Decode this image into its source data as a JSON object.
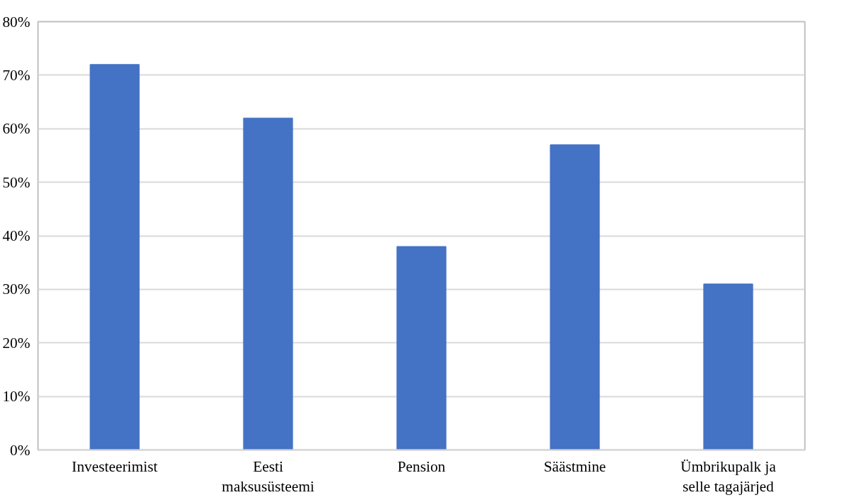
{
  "chart_data": {
    "type": "bar",
    "categories": [
      "Investeerimist",
      "Eesti maksusüsteemi",
      "Pension",
      "Säästmine",
      "Ümbrikupalk ja selle tagajärjed"
    ],
    "values": [
      72,
      62,
      38,
      57,
      31
    ],
    "color": "#4472c4",
    "ylim": [
      0,
      80
    ],
    "yticks": [
      {
        "value": 0,
        "label": "0%"
      },
      {
        "value": 10,
        "label": "10%"
      },
      {
        "value": 20,
        "label": "20%"
      },
      {
        "value": 30,
        "label": "30%"
      },
      {
        "value": 40,
        "label": "40%"
      },
      {
        "value": 50,
        "label": "50%"
      },
      {
        "value": 60,
        "label": "60%"
      },
      {
        "value": 70,
        "label": "70%"
      },
      {
        "value": 80,
        "label": "80%"
      }
    ],
    "grid": "y"
  }
}
